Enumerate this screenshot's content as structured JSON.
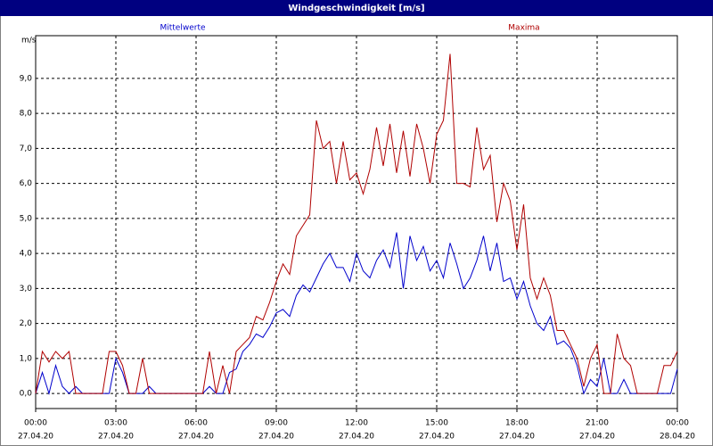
{
  "chart_data": {
    "type": "line",
    "title": "Windgeschwindigkeit [m/s]",
    "y_label": "m/s",
    "x": [
      0,
      0.25,
      0.5,
      0.75,
      1,
      1.25,
      1.5,
      1.75,
      2,
      2.25,
      2.5,
      2.75,
      3,
      3.25,
      3.5,
      3.75,
      4,
      4.25,
      4.5,
      4.75,
      5,
      5.25,
      5.5,
      5.75,
      6,
      6.25,
      6.5,
      6.75,
      7,
      7.25,
      7.5,
      7.75,
      8,
      8.25,
      8.5,
      8.75,
      9,
      9.25,
      9.5,
      9.75,
      10,
      10.25,
      10.5,
      10.75,
      11,
      11.25,
      11.5,
      11.75,
      12,
      12.25,
      12.5,
      12.75,
      13,
      13.25,
      13.5,
      13.75,
      14,
      14.25,
      14.5,
      14.75,
      15,
      15.25,
      15.5,
      15.75,
      16,
      16.25,
      16.5,
      16.75,
      17,
      17.25,
      17.5,
      17.75,
      18,
      18.25,
      18.5,
      18.75,
      19,
      19.25,
      19.5,
      19.75,
      20,
      20.25,
      20.5,
      20.75,
      21,
      21.25,
      21.5,
      21.75,
      22,
      22.25,
      22.5,
      22.75,
      23,
      23.25,
      23.5,
      23.75,
      24
    ],
    "series": [
      {
        "name": "Mittelwerte",
        "color": "#0000cc",
        "values": [
          0,
          0.6,
          0,
          0.8,
          0.2,
          0,
          0.2,
          0,
          0,
          0,
          0,
          0,
          1.0,
          0.6,
          0,
          0,
          0,
          0.2,
          0,
          0,
          0,
          0,
          0,
          0,
          0,
          0,
          0.2,
          0,
          0,
          0.6,
          0.7,
          1.2,
          1.4,
          1.7,
          1.6,
          1.9,
          2.3,
          2.4,
          2.2,
          2.8,
          3.1,
          2.9,
          3.3,
          3.7,
          4.0,
          3.6,
          3.6,
          3.2,
          4.0,
          3.5,
          3.3,
          3.8,
          4.1,
          3.6,
          4.6,
          3.0,
          4.5,
          3.8,
          4.2,
          3.5,
          3.8,
          3.3,
          4.3,
          3.7,
          3.0,
          3.3,
          3.8,
          4.5,
          3.5,
          4.3,
          3.2,
          3.3,
          2.7,
          3.2,
          2.5,
          2.0,
          1.8,
          2.2,
          1.4,
          1.5,
          1.3,
          0.8,
          0,
          0.4,
          0.2,
          1.0,
          0,
          0,
          0.4,
          0,
          0,
          0,
          0,
          0,
          0,
          0,
          0.7
        ]
      },
      {
        "name": "Maxima",
        "color": "#b00000",
        "values": [
          0,
          1.2,
          0.9,
          1.2,
          1.0,
          1.2,
          0,
          0,
          0,
          0,
          0,
          1.2,
          1.2,
          0.8,
          0,
          0,
          1.0,
          0,
          0,
          0,
          0,
          0,
          0,
          0,
          0,
          0,
          1.2,
          0,
          0.8,
          0,
          1.2,
          1.4,
          1.6,
          2.2,
          2.1,
          2.6,
          3.2,
          3.7,
          3.4,
          4.5,
          4.8,
          5.1,
          7.8,
          7.0,
          7.2,
          6.0,
          7.2,
          6.1,
          6.3,
          5.7,
          6.4,
          7.6,
          6.5,
          7.7,
          6.3,
          7.5,
          6.2,
          7.7,
          7.0,
          6.0,
          7.4,
          7.8,
          9.7,
          6.0,
          6.0,
          5.9,
          7.6,
          6.4,
          6.8,
          4.9,
          6.0,
          5.5,
          4.1,
          5.4,
          3.3,
          2.7,
          3.3,
          2.8,
          1.8,
          1.8,
          1.4,
          1.0,
          0.2,
          1.0,
          1.4,
          0,
          0,
          1.7,
          1.0,
          0.8,
          0,
          0,
          0,
          0,
          0.8,
          0.8,
          1.2
        ]
      }
    ],
    "xlim": [
      0,
      24
    ],
    "xticks": [
      {
        "value": 0,
        "label": "00:00",
        "date": "27.04.20"
      },
      {
        "value": 3,
        "label": "03:00",
        "date": "27.04.20"
      },
      {
        "value": 6,
        "label": "06:00",
        "date": "27.04.20"
      },
      {
        "value": 9,
        "label": "09:00",
        "date": "27.04.20"
      },
      {
        "value": 12,
        "label": "12:00",
        "date": "27.04.20"
      },
      {
        "value": 15,
        "label": "15:00",
        "date": "27.04.20"
      },
      {
        "value": 18,
        "label": "18:00",
        "date": "27.04.20"
      },
      {
        "value": 21,
        "label": "21:00",
        "date": "27.04.20"
      },
      {
        "value": 24,
        "label": "00:00",
        "date": "28.04.20"
      }
    ],
    "ylim": [
      -0.43,
      10.22
    ],
    "yticks": [
      {
        "value": 0,
        "label": "0,0"
      },
      {
        "value": 1,
        "label": "1,0"
      },
      {
        "value": 2,
        "label": "2,0"
      },
      {
        "value": 3,
        "label": "3,0"
      },
      {
        "value": 4,
        "label": "4,0"
      },
      {
        "value": 5,
        "label": "5,0"
      },
      {
        "value": 6,
        "label": "6,0"
      },
      {
        "value": 7,
        "label": "7,0"
      },
      {
        "value": 8,
        "label": "8,0"
      },
      {
        "value": 9,
        "label": "9,0"
      }
    ],
    "grid": true
  }
}
